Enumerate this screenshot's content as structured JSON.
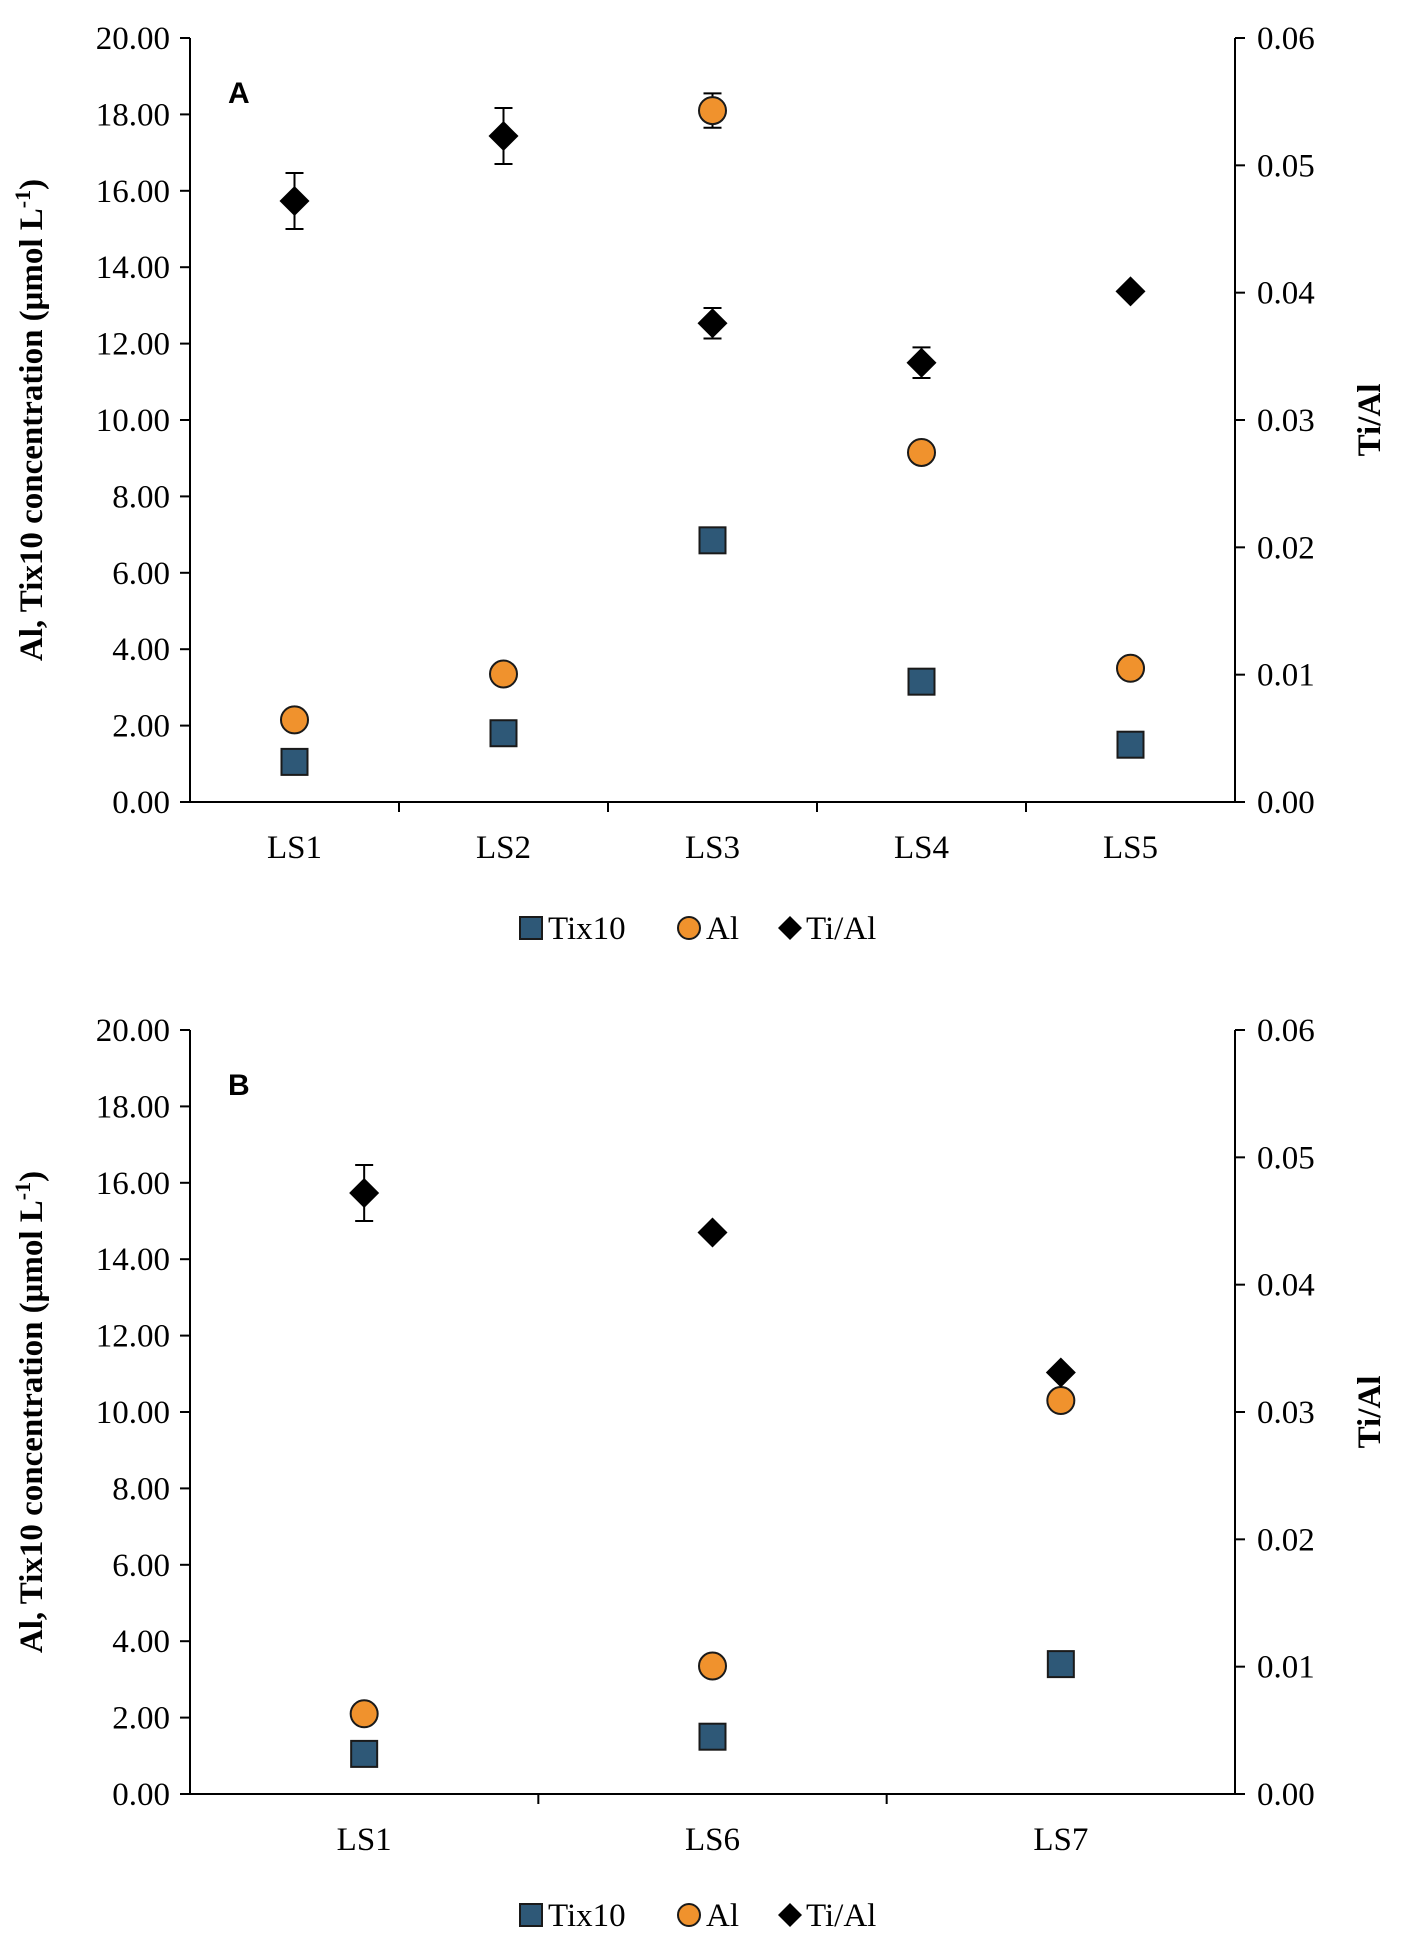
{
  "colors": {
    "tix10": "#2e5877",
    "al": "#f0922d",
    "ti_al": "#000000",
    "marker_stroke": "#1a1a1a"
  },
  "chart_data": [
    {
      "type": "scatter",
      "panel": "A",
      "categories": [
        "LS1",
        "LS2",
        "LS3",
        "LS4",
        "LS5"
      ],
      "ylabel_left": "Al, Tix10 concentration (μmol L",
      "ylabel_left_sup": "-1",
      "ylabel_left_end": ")",
      "ylabel_right": "Ti/Al",
      "ylim_left": [
        0,
        20
      ],
      "ylim_right": [
        0,
        0.06
      ],
      "yticks_left": [
        "0.00",
        "2.00",
        "4.00",
        "6.00",
        "8.00",
        "10.00",
        "12.00",
        "14.00",
        "16.00",
        "18.00",
        "20.00"
      ],
      "yticks_right": [
        "0.00",
        "0.01",
        "0.02",
        "0.03",
        "0.04",
        "0.05",
        "0.06"
      ],
      "series": [
        {
          "name": "Tix10",
          "axis": "left",
          "marker": "square",
          "values": [
            1.05,
            1.8,
            6.85,
            3.15,
            1.5
          ]
        },
        {
          "name": "Al",
          "axis": "left",
          "marker": "circle",
          "values": [
            2.15,
            3.35,
            18.1,
            9.15,
            3.5
          ],
          "errors": [
            0,
            0,
            0.45,
            0,
            0
          ]
        },
        {
          "name": "Ti/Al",
          "axis": "right",
          "marker": "diamond",
          "values": [
            0.0472,
            0.0523,
            0.0376,
            0.0345,
            0.0401
          ],
          "errors": [
            0.0022,
            0.0022,
            0.0012,
            0.0012,
            0
          ]
        }
      ],
      "legend": [
        "Tix10",
        "Al",
        "Ti/Al"
      ]
    },
    {
      "type": "scatter",
      "panel": "B",
      "categories": [
        "LS1",
        "LS6",
        "LS7"
      ],
      "ylabel_left": "Al, Tix10 concentration (μmol L",
      "ylabel_left_sup": "-1",
      "ylabel_left_end": ")",
      "ylabel_right": "Ti/Al",
      "ylim_left": [
        0,
        20
      ],
      "ylim_right": [
        0,
        0.06
      ],
      "yticks_left": [
        "0.00",
        "2.00",
        "4.00",
        "6.00",
        "8.00",
        "10.00",
        "12.00",
        "14.00",
        "16.00",
        "18.00",
        "20.00"
      ],
      "yticks_right": [
        "0.00",
        "0.01",
        "0.02",
        "0.03",
        "0.04",
        "0.05",
        "0.06"
      ],
      "series": [
        {
          "name": "Tix10",
          "axis": "left",
          "marker": "square",
          "values": [
            1.05,
            1.5,
            3.4
          ]
        },
        {
          "name": "Al",
          "axis": "left",
          "marker": "circle",
          "values": [
            2.1,
            3.35,
            10.3
          ]
        },
        {
          "name": "Ti/Al",
          "axis": "right",
          "marker": "diamond",
          "values": [
            0.0472,
            0.0441,
            0.0331
          ],
          "errors": [
            0.0022,
            0,
            0
          ]
        }
      ],
      "legend": [
        "Tix10",
        "Al",
        "Ti/Al"
      ]
    }
  ]
}
